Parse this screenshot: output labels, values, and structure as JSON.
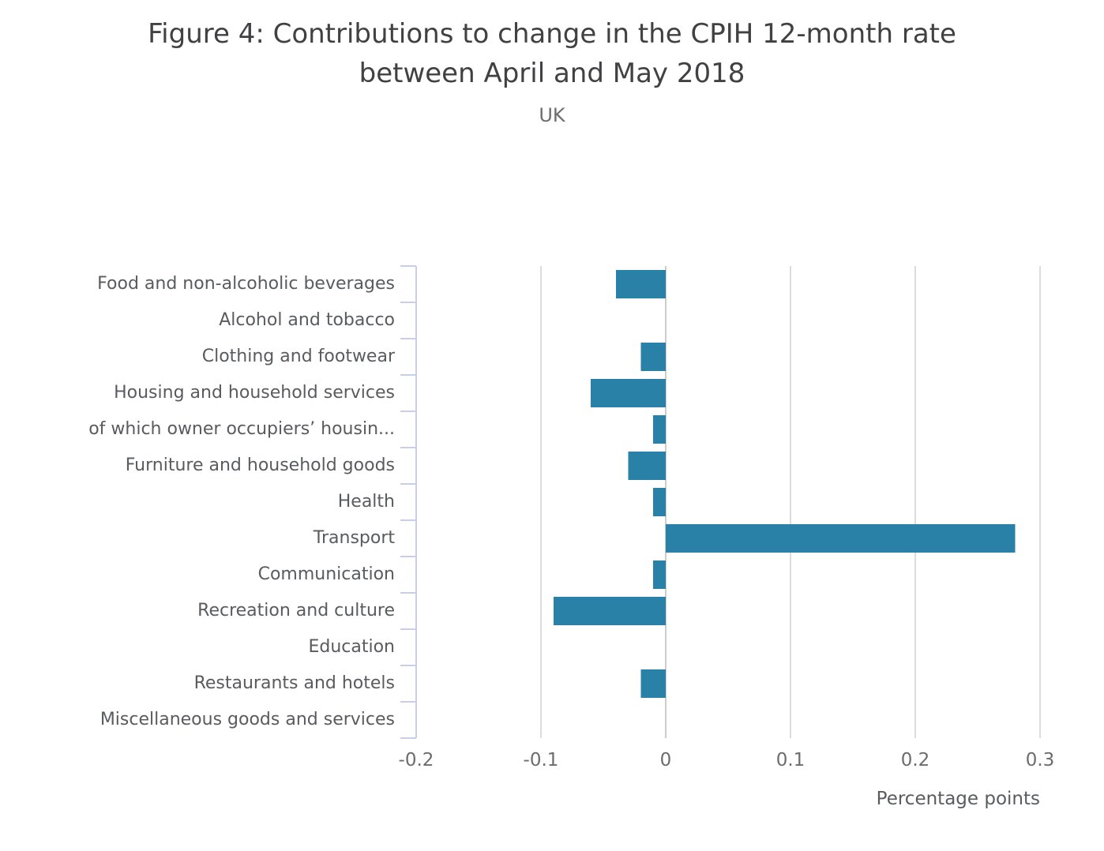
{
  "chart": {
    "title_line1": "Figure 4: Contributions to change in the CPIH 12-month rate",
    "title_line2": "between April and May 2018",
    "subtitle": "UK",
    "xlabel": "Percentage points"
  },
  "chart_data": {
    "type": "bar",
    "orientation": "horizontal",
    "title": "Figure 4: Contributions to change in the CPIH 12-month rate between April and May 2018",
    "subtitle": "UK",
    "xlabel": "Percentage points",
    "categories": [
      "Food and non-alcoholic beverages",
      "Alcohol and tobacco",
      "Clothing and footwear",
      "Housing and household services",
      "of which owner occupiers’ housin...",
      "Furniture and household goods",
      "Health",
      "Transport",
      "Communication",
      "Recreation and culture",
      "Education",
      "Restaurants and hotels",
      "Miscellaneous goods and services"
    ],
    "values": [
      -0.04,
      0,
      -0.02,
      -0.06,
      -0.01,
      -0.03,
      -0.01,
      0.28,
      -0.01,
      -0.09,
      0,
      -0.02,
      0
    ],
    "x_ticks": [
      -0.2,
      -0.1,
      0,
      0.1,
      0.2,
      0.3
    ],
    "x_tick_labels": [
      "-0.2",
      "-0.1",
      "0",
      "0.1",
      "0.2",
      "0.3"
    ],
    "xlim": [
      -0.2,
      0.32
    ],
    "grid": true,
    "legend_position": "none",
    "bar_color": "#2a81a8",
    "axis_color": "#c7d0e8",
    "grid_color": "#dcdcdc",
    "zero_line_color": "#cdcdcd"
  }
}
